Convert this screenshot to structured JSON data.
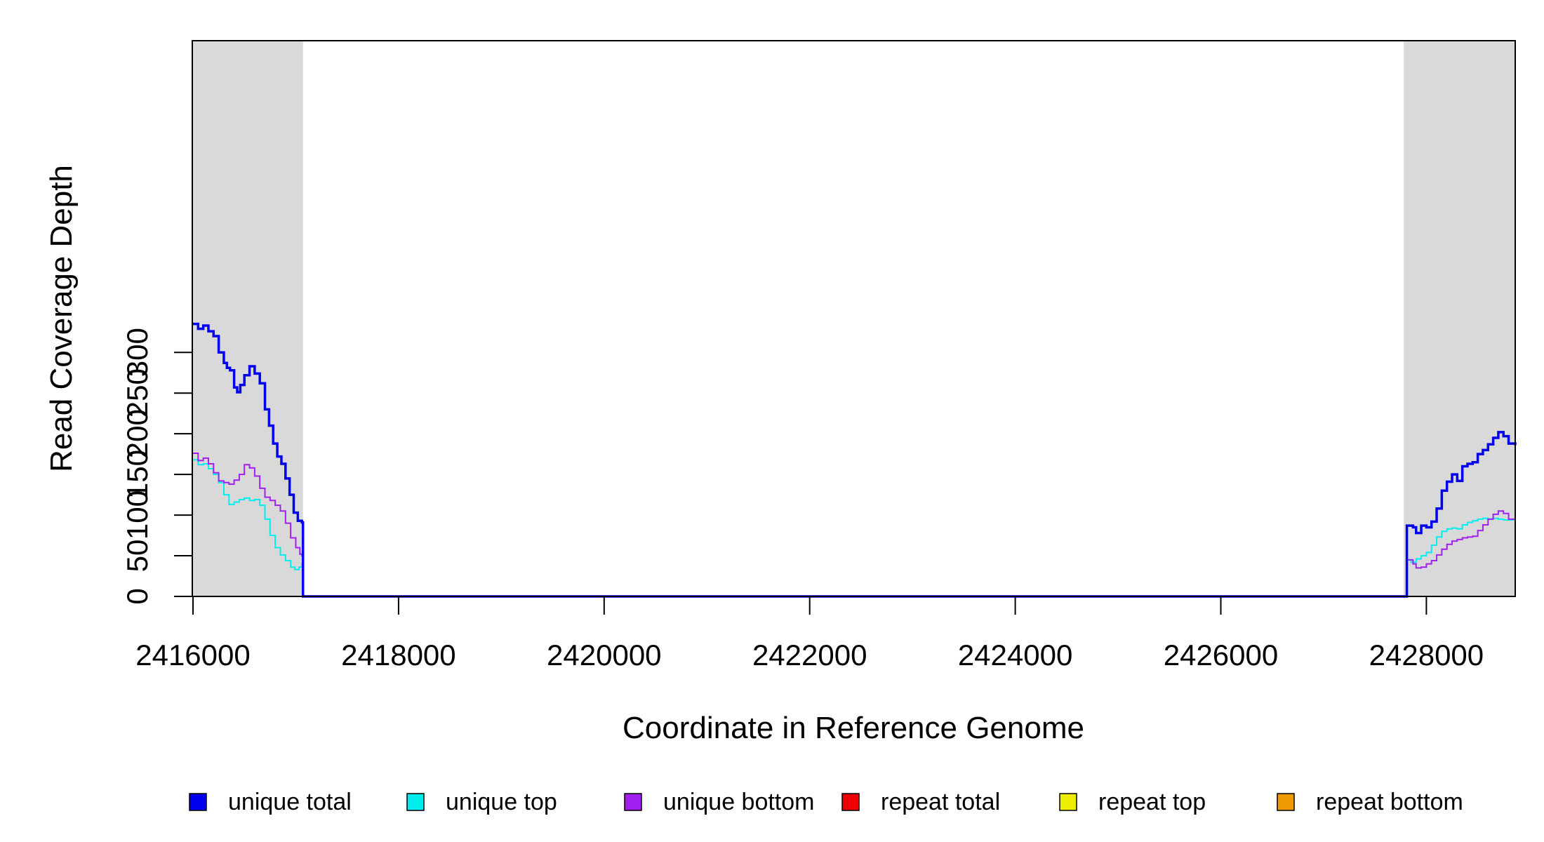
{
  "chart_data": {
    "type": "line",
    "xlabel": "Coordinate in Reference Genome",
    "ylabel": "Read Coverage Depth",
    "xlim": [
      2416000,
      2428900
    ],
    "ylim": [
      0,
      340
    ],
    "x_ticks": [
      "2416000",
      "2418000",
      "2420000",
      "2422000",
      "2424000",
      "2426000",
      "2428000"
    ],
    "y_ticks": [
      "0",
      "50",
      "100",
      "150",
      "200",
      "250",
      "300"
    ],
    "shaded_regions": [
      [
        2416000,
        2417070
      ],
      [
        2427780,
        2428900
      ]
    ],
    "legend_placement": "bottom",
    "series": [
      {
        "name": "unique total",
        "color": "#0000ee",
        "points": [
          [
            2416000,
            335
          ],
          [
            2416050,
            329
          ],
          [
            2416100,
            333
          ],
          [
            2416150,
            326
          ],
          [
            2416200,
            320
          ],
          [
            2416250,
            300
          ],
          [
            2416300,
            287
          ],
          [
            2416330,
            281
          ],
          [
            2416360,
            278
          ],
          [
            2416400,
            257
          ],
          [
            2416430,
            251
          ],
          [
            2416460,
            260
          ],
          [
            2416500,
            272
          ],
          [
            2416550,
            283
          ],
          [
            2416600,
            274
          ],
          [
            2416650,
            262
          ],
          [
            2416700,
            230
          ],
          [
            2416740,
            210
          ],
          [
            2416780,
            188
          ],
          [
            2416820,
            172
          ],
          [
            2416860,
            163
          ],
          [
            2416900,
            145
          ],
          [
            2416940,
            125
          ],
          [
            2416980,
            103
          ],
          [
            2417020,
            93
          ],
          [
            2417060,
            91
          ],
          [
            2417070,
            0
          ],
          [
            2427800,
            0
          ],
          [
            2427810,
            87
          ],
          [
            2427870,
            85
          ],
          [
            2427900,
            78
          ],
          [
            2427950,
            87
          ],
          [
            2428000,
            85
          ],
          [
            2428050,
            92
          ],
          [
            2428100,
            108
          ],
          [
            2428150,
            130
          ],
          [
            2428200,
            141
          ],
          [
            2428250,
            150
          ],
          [
            2428300,
            142
          ],
          [
            2428350,
            160
          ],
          [
            2428400,
            163
          ],
          [
            2428450,
            165
          ],
          [
            2428500,
            175
          ],
          [
            2428550,
            180
          ],
          [
            2428600,
            187
          ],
          [
            2428650,
            195
          ],
          [
            2428700,
            202
          ],
          [
            2428750,
            197
          ],
          [
            2428800,
            188
          ],
          [
            2428880,
            186
          ]
        ]
      },
      {
        "name": "unique top",
        "color": "#00eeee",
        "points": [
          [
            2416000,
            168
          ],
          [
            2416050,
            162
          ],
          [
            2416100,
            163
          ],
          [
            2416150,
            157
          ],
          [
            2416200,
            150
          ],
          [
            2416250,
            140
          ],
          [
            2416300,
            125
          ],
          [
            2416350,
            113
          ],
          [
            2416400,
            116
          ],
          [
            2416450,
            119
          ],
          [
            2416500,
            121
          ],
          [
            2416550,
            118
          ],
          [
            2416600,
            119
          ],
          [
            2416650,
            112
          ],
          [
            2416700,
            95
          ],
          [
            2416750,
            75
          ],
          [
            2416800,
            60
          ],
          [
            2416850,
            51
          ],
          [
            2416900,
            44
          ],
          [
            2416950,
            36
          ],
          [
            2416990,
            33
          ],
          [
            2417030,
            36
          ],
          [
            2417060,
            40
          ],
          [
            2417070,
            0
          ],
          [
            2427800,
            0
          ],
          [
            2427810,
            45
          ],
          [
            2427850,
            42
          ],
          [
            2427900,
            46
          ],
          [
            2427950,
            50
          ],
          [
            2428000,
            54
          ],
          [
            2428050,
            63
          ],
          [
            2428100,
            73
          ],
          [
            2428150,
            80
          ],
          [
            2428200,
            83
          ],
          [
            2428250,
            84
          ],
          [
            2428300,
            83
          ],
          [
            2428350,
            88
          ],
          [
            2428400,
            91
          ],
          [
            2428450,
            93
          ],
          [
            2428500,
            95
          ],
          [
            2428550,
            96
          ],
          [
            2428600,
            95
          ],
          [
            2428650,
            96
          ],
          [
            2428700,
            95
          ],
          [
            2428750,
            94
          ],
          [
            2428880,
            93
          ]
        ]
      },
      {
        "name": "unique bottom",
        "color": "#a020f0",
        "points": [
          [
            2416000,
            176
          ],
          [
            2416050,
            167
          ],
          [
            2416100,
            170
          ],
          [
            2416150,
            163
          ],
          [
            2416200,
            152
          ],
          [
            2416250,
            142
          ],
          [
            2416300,
            140
          ],
          [
            2416350,
            138
          ],
          [
            2416400,
            143
          ],
          [
            2416450,
            150
          ],
          [
            2416500,
            162
          ],
          [
            2416550,
            158
          ],
          [
            2416600,
            148
          ],
          [
            2416650,
            133
          ],
          [
            2416700,
            122
          ],
          [
            2416750,
            118
          ],
          [
            2416800,
            112
          ],
          [
            2416850,
            105
          ],
          [
            2416900,
            90
          ],
          [
            2416950,
            72
          ],
          [
            2417000,
            60
          ],
          [
            2417040,
            52
          ],
          [
            2417060,
            50
          ],
          [
            2417070,
            0
          ],
          [
            2427800,
            0
          ],
          [
            2427810,
            45
          ],
          [
            2427870,
            40
          ],
          [
            2427900,
            35
          ],
          [
            2427950,
            36
          ],
          [
            2428000,
            40
          ],
          [
            2428050,
            44
          ],
          [
            2428100,
            51
          ],
          [
            2428150,
            58
          ],
          [
            2428200,
            64
          ],
          [
            2428250,
            68
          ],
          [
            2428300,
            70
          ],
          [
            2428350,
            72
          ],
          [
            2428400,
            73
          ],
          [
            2428450,
            74
          ],
          [
            2428500,
            81
          ],
          [
            2428550,
            88
          ],
          [
            2428600,
            95
          ],
          [
            2428650,
            101
          ],
          [
            2428700,
            105
          ],
          [
            2428750,
            102
          ],
          [
            2428800,
            95
          ],
          [
            2428880,
            93
          ]
        ]
      },
      {
        "name": "repeat total",
        "color": "#ee0000",
        "points": [
          [
            2416000,
            0
          ],
          [
            2428880,
            0
          ]
        ]
      },
      {
        "name": "repeat top",
        "color": "#eeee00",
        "points": [
          [
            2416000,
            0
          ],
          [
            2428880,
            0
          ]
        ]
      },
      {
        "name": "repeat bottom",
        "color": "#ee9a00",
        "points": [
          [
            2416000,
            0
          ],
          [
            2428880,
            0
          ]
        ]
      }
    ]
  }
}
